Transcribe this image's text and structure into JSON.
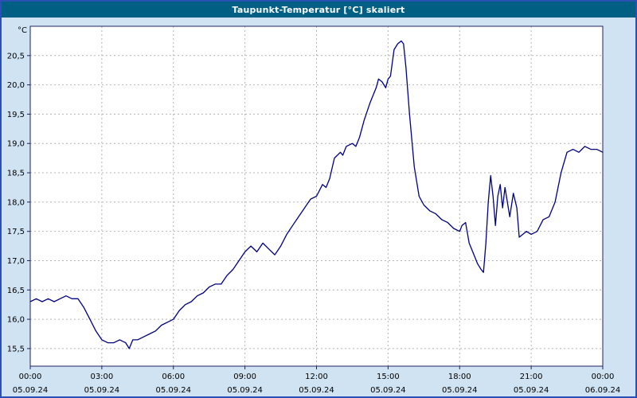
{
  "window": {
    "title": "Taupunkt-Temperatur [°C] skaliert"
  },
  "colors": {
    "line": "#000080",
    "plot_background": "#ffffff",
    "page_background": "#cfe3f3",
    "title_bar": "#005f82",
    "outer_border": "#2b50b4",
    "grid": "#b4b4b4",
    "frame": "#202060"
  },
  "chart_data": {
    "type": "line",
    "title": "Taupunkt-Temperatur [°C] skaliert",
    "xlabel": "",
    "ylabel": "°C",
    "ylim": [
      15.2,
      21.0
    ],
    "xlim_hours": [
      0,
      24
    ],
    "grid": "dashed",
    "legend": "none",
    "yticks": [
      {
        "value": 15.5,
        "label": "15,5"
      },
      {
        "value": 16.0,
        "label": "16,0"
      },
      {
        "value": 16.5,
        "label": "16,5"
      },
      {
        "value": 17.0,
        "label": "17,0"
      },
      {
        "value": 17.5,
        "label": "17,5"
      },
      {
        "value": 18.0,
        "label": "18,0"
      },
      {
        "value": 18.5,
        "label": "18,5"
      },
      {
        "value": 19.0,
        "label": "19,0"
      },
      {
        "value": 19.5,
        "label": "19,5"
      },
      {
        "value": 20.0,
        "label": "20,0"
      },
      {
        "value": 20.5,
        "label": "20,5"
      }
    ],
    "xticks": [
      {
        "hour": 0,
        "time": "00:00",
        "date": "05.09.24"
      },
      {
        "hour": 3,
        "time": "03:00",
        "date": "05.09.24"
      },
      {
        "hour": 6,
        "time": "06:00",
        "date": "05.09.24"
      },
      {
        "hour": 9,
        "time": "09:00",
        "date": "05.09.24"
      },
      {
        "hour": 12,
        "time": "12:00",
        "date": "05.09.24"
      },
      {
        "hour": 15,
        "time": "15:00",
        "date": "05.09.24"
      },
      {
        "hour": 18,
        "time": "18:00",
        "date": "05.09.24"
      },
      {
        "hour": 21,
        "time": "21:00",
        "date": "05.09.24"
      },
      {
        "hour": 24,
        "time": "00:00",
        "date": "06.09.24"
      }
    ],
    "series": [
      {
        "name": "Taupunkt-Temperatur",
        "unit": "°C",
        "color": "#000080",
        "x": [
          0,
          0.25,
          0.5,
          0.75,
          1,
          1.25,
          1.5,
          1.75,
          2,
          2.25,
          2.5,
          2.75,
          3,
          3.25,
          3.5,
          3.75,
          4,
          4.15,
          4.3,
          4.5,
          4.75,
          5,
          5.25,
          5.5,
          5.75,
          6,
          6.25,
          6.5,
          6.75,
          7,
          7.25,
          7.5,
          7.75,
          8,
          8.25,
          8.5,
          8.75,
          9,
          9.25,
          9.5,
          9.75,
          10,
          10.25,
          10.5,
          10.75,
          11,
          11.25,
          11.5,
          11.75,
          12,
          12.25,
          12.4,
          12.55,
          12.75,
          13,
          13.1,
          13.25,
          13.5,
          13.65,
          13.8,
          14,
          14.25,
          14.5,
          14.6,
          14.75,
          14.9,
          15,
          15.1,
          15.25,
          15.4,
          15.55,
          15.65,
          15.75,
          15.9,
          16.1,
          16.3,
          16.5,
          16.75,
          17,
          17.25,
          17.5,
          17.75,
          18,
          18.1,
          18.25,
          18.4,
          18.55,
          18.75,
          18.9,
          19,
          19.1,
          19.2,
          19.3,
          19.4,
          19.5,
          19.6,
          19.7,
          19.8,
          19.9,
          20,
          20.1,
          20.25,
          20.4,
          20.5,
          20.65,
          20.8,
          21,
          21.25,
          21.5,
          21.75,
          22,
          22.25,
          22.5,
          22.75,
          23,
          23.25,
          23.5,
          23.75,
          24
        ],
        "y": [
          16.3,
          16.35,
          16.3,
          16.35,
          16.3,
          16.35,
          16.4,
          16.35,
          16.35,
          16.2,
          16.0,
          15.8,
          15.65,
          15.6,
          15.6,
          15.65,
          15.6,
          15.5,
          15.65,
          15.65,
          15.7,
          15.75,
          15.8,
          15.9,
          15.95,
          16.0,
          16.15,
          16.25,
          16.3,
          16.4,
          16.45,
          16.55,
          16.6,
          16.6,
          16.75,
          16.85,
          17.0,
          17.15,
          17.25,
          17.15,
          17.3,
          17.2,
          17.1,
          17.25,
          17.45,
          17.6,
          17.75,
          17.9,
          18.05,
          18.1,
          18.3,
          18.25,
          18.4,
          18.75,
          18.85,
          18.8,
          18.95,
          19.0,
          18.95,
          19.1,
          19.4,
          19.7,
          19.95,
          20.1,
          20.05,
          19.95,
          20.1,
          20.15,
          20.6,
          20.7,
          20.75,
          20.7,
          20.3,
          19.5,
          18.6,
          18.1,
          17.95,
          17.85,
          17.8,
          17.7,
          17.65,
          17.55,
          17.5,
          17.6,
          17.65,
          17.3,
          17.15,
          16.95,
          16.85,
          16.8,
          17.3,
          18.0,
          18.45,
          18.1,
          17.6,
          18.1,
          18.3,
          17.9,
          18.25,
          18.0,
          17.75,
          18.15,
          17.9,
          17.4,
          17.45,
          17.5,
          17.45,
          17.5,
          17.7,
          17.75,
          18.0,
          18.5,
          18.85,
          18.9,
          18.85,
          18.95,
          18.9,
          18.9,
          18.85
        ]
      }
    ]
  }
}
